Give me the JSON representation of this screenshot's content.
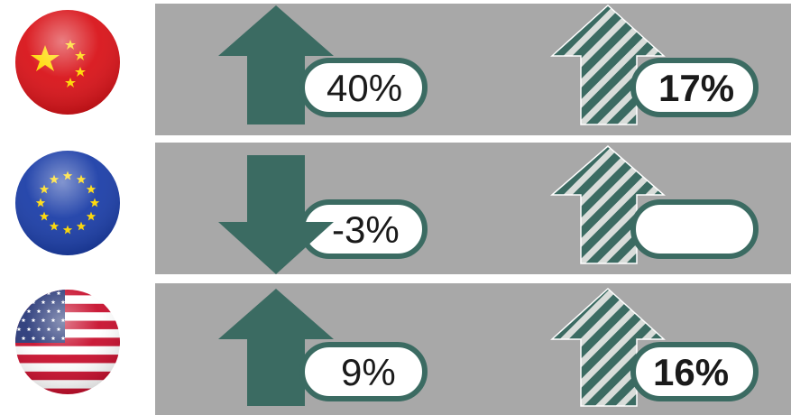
{
  "colors": {
    "panel": "#a8a8a8",
    "arrow": "#3b6b62",
    "stripe_light": "#d9ddda",
    "pill_border": "#3b6b62",
    "pill_fill": "#ffffff"
  },
  "rows": [
    {
      "region": "China",
      "flag_icon": "china-flag-icon",
      "left": {
        "direction": "up",
        "value": "40%"
      },
      "right": {
        "direction": "up",
        "value": "17%"
      }
    },
    {
      "region": "European Union",
      "flag_icon": "eu-flag-icon",
      "left": {
        "direction": "down",
        "value": "-3%"
      },
      "right": {
        "direction": "up",
        "value": ""
      }
    },
    {
      "region": "United States",
      "flag_icon": "us-flag-icon",
      "left": {
        "direction": "up",
        "value": "9%"
      },
      "right": {
        "direction": "up",
        "value": "16%"
      }
    }
  ]
}
